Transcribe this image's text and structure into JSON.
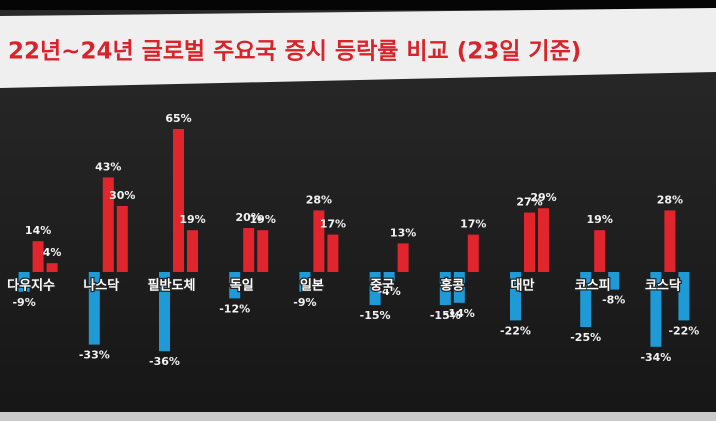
{
  "chart_data": {
    "type": "bar",
    "title": "22년~24년 글로벌 주요국 증시 등락률 비교 (23일 기준)",
    "categories": [
      "다우지수",
      "나스닥",
      "필반도체",
      "독일",
      "일본",
      "중국",
      "홍콩",
      "대만",
      "코스피",
      "코스닥"
    ],
    "positive_color": "#e0262c",
    "negative_color": "#1e9ad6",
    "series": [
      {
        "values": [
          -9,
          -33,
          -36,
          -12,
          -9,
          -15,
          -15,
          -22,
          -25,
          -34
        ],
        "value_labels": [
          "-9%",
          "-33%",
          "-36%",
          "-12%",
          "-9%",
          "-15%",
          "-15%",
          "-22%",
          "-25%",
          "-34%"
        ]
      },
      {
        "values": [
          14,
          43,
          65,
          20,
          28,
          -4,
          -14,
          27,
          19,
          28
        ],
        "value_labels": [
          "14%",
          "43%",
          "65%",
          "20%",
          "28%",
          "-4%",
          "-14%",
          "27%",
          "19%",
          "28%"
        ]
      },
      {
        "values": [
          4,
          30,
          19,
          19,
          17,
          13,
          17,
          29,
          -8,
          -22
        ],
        "value_labels": [
          "4%",
          "30%",
          "19%",
          "19%",
          "17%",
          "13%",
          "17%",
          "29%",
          "-8%",
          "-22%"
        ]
      }
    ]
  }
}
